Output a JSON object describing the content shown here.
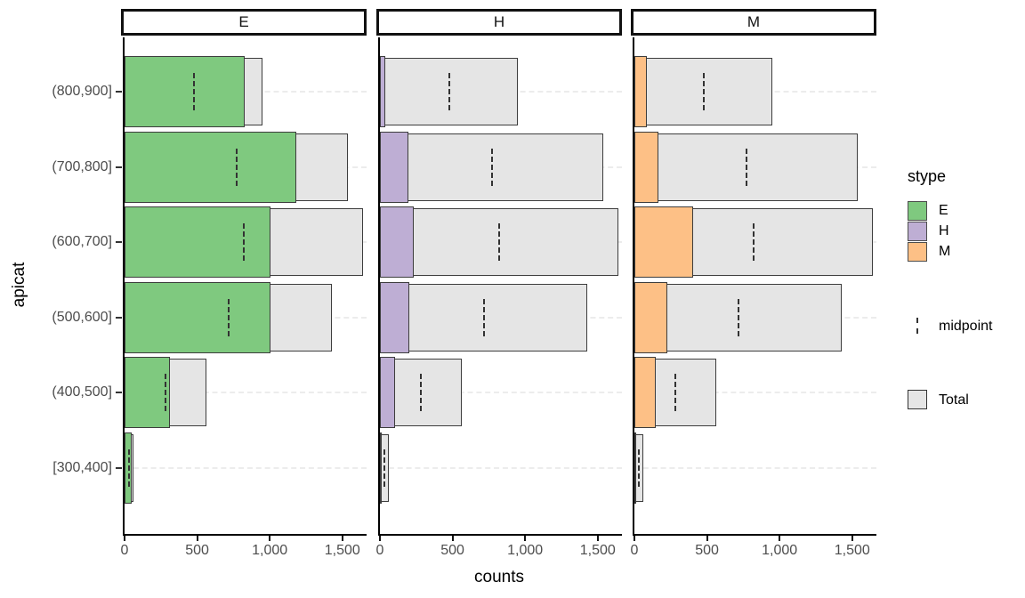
{
  "chart_data": {
    "type": "bar",
    "orientation": "horizontal",
    "facet_variable_values": [
      "E",
      "H",
      "M"
    ],
    "categories": [
      "(800,900]",
      "(700,800]",
      "(600,700]",
      "(500,600]",
      "(400,500]",
      "[300,400]"
    ],
    "series": [
      {
        "name": "E",
        "color": "#7fc97f",
        "values": [
          830,
          1180,
          1005,
          1005,
          310,
          50
        ]
      },
      {
        "name": "H",
        "color": "#beaed4",
        "values": [
          35,
          195,
          230,
          200,
          105,
          5
        ]
      },
      {
        "name": "M",
        "color": "#fdc086",
        "values": [
          85,
          165,
          405,
          225,
          150,
          5
        ]
      }
    ],
    "totals": [
      950,
      1540,
      1640,
      1430,
      565,
      60
    ],
    "midpoints": [
      475,
      770,
      820,
      715,
      283,
      30
    ],
    "xlabel": "counts",
    "ylabel": "apicat",
    "xlim": [
      0,
      1667
    ],
    "x_ticks": [
      0,
      500,
      1000,
      1500
    ],
    "x_tick_labels": [
      "0",
      "500",
      "1,000",
      "1,500"
    ],
    "grid": "dashed horizontal at each category",
    "legend_position": "right"
  },
  "legend": {
    "stype_title": "stype",
    "items": [
      {
        "label": "E",
        "color": "#7fc97f"
      },
      {
        "label": "H",
        "color": "#beaed4"
      },
      {
        "label": "M",
        "color": "#fdc086"
      }
    ],
    "midpoint_label": "midpoint",
    "total_label": "Total"
  },
  "colors": {
    "total_fill": "#e5e5e5",
    "bar_border": "#3d3d3d",
    "gridline": "#ececec",
    "axis_line": "#000000",
    "tick_label": "#4d4d4d"
  }
}
